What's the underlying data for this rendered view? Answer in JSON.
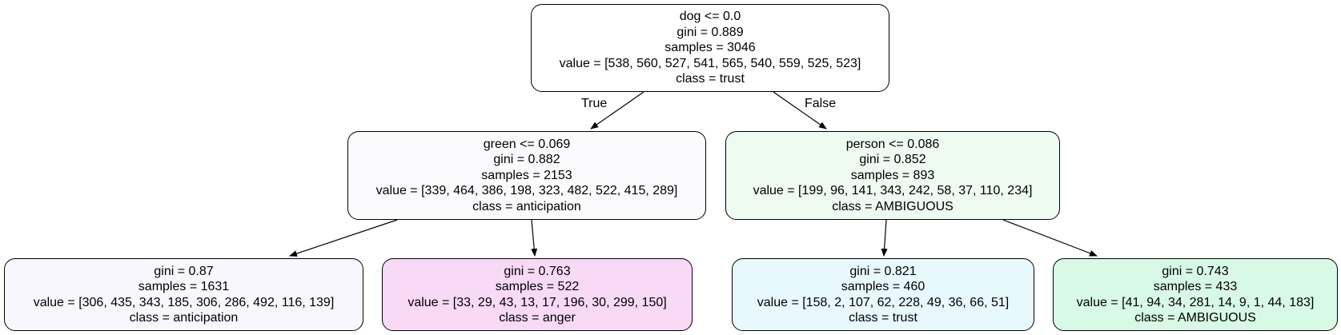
{
  "tree": {
    "nodes": [
      {
        "id": "n0",
        "lines": [
          "dog <= 0.0",
          "gini = 0.889",
          "samples = 3046",
          "value = [538, 560, 527, 541, 565, 540, 559, 525, 523]",
          "class = trust"
        ],
        "fill": "#ffffff"
      },
      {
        "id": "n1",
        "lines": [
          "green <= 0.069",
          "gini = 0.882",
          "samples = 2153",
          "value = [339, 464, 386, 198, 323, 482, 522, 415, 289]",
          "class = anticipation"
        ],
        "fill": "#fbfbfe"
      },
      {
        "id": "n2",
        "lines": [
          "person <= 0.086",
          "gini = 0.852",
          "samples = 893",
          "value = [199, 96, 141, 343, 242, 58, 37, 110, 234]",
          "class = AMBIGUOUS"
        ],
        "fill": "#edfbf1"
      },
      {
        "id": "n3",
        "lines": [
          "gini = 0.87",
          "samples = 1631",
          "value = [306, 435, 343, 185, 306, 286, 492, 116, 139]",
          "class = anticipation"
        ],
        "fill": "#f9f7fe"
      },
      {
        "id": "n4",
        "lines": [
          "gini = 0.763",
          "samples = 522",
          "value = [33, 29, 43, 13, 17, 196, 30, 299, 150]",
          "class = anger"
        ],
        "fill": "#f8daf6"
      },
      {
        "id": "n5",
        "lines": [
          "gini = 0.821",
          "samples = 460",
          "value = [158, 2, 107, 62, 228, 49, 36, 66, 51]",
          "class = trust"
        ],
        "fill": "#e8f9fd"
      },
      {
        "id": "n6",
        "lines": [
          "gini = 0.743",
          "samples = 433",
          "value = [41, 94, 34, 281, 14, 9, 1, 44, 183]",
          "class = AMBIGUOUS"
        ],
        "fill": "#d8f9e5"
      }
    ],
    "edges": [
      {
        "from": "n0",
        "to": "n1",
        "label": "True"
      },
      {
        "from": "n0",
        "to": "n2",
        "label": "False"
      },
      {
        "from": "n1",
        "to": "n3",
        "label": ""
      },
      {
        "from": "n1",
        "to": "n4",
        "label": ""
      },
      {
        "from": "n2",
        "to": "n5",
        "label": ""
      },
      {
        "from": "n2",
        "to": "n6",
        "label": ""
      }
    ]
  }
}
